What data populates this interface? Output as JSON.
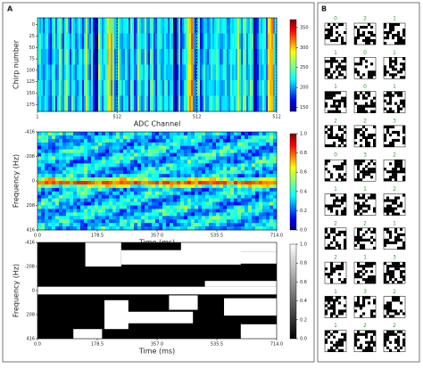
{
  "panel_labels": {
    "a": "A",
    "b": "B"
  },
  "chart_data": [
    {
      "type": "heatmap",
      "cmap": "jet",
      "xlabel": "ADC Channel",
      "ylabel": "Chirp number",
      "xlim": [
        1,
        1536
      ],
      "xticks": [
        1,
        512,
        {
          "value": 1024,
          "label": "512"
        },
        {
          "value": 1536,
          "label": "512"
        }
      ],
      "segment_lines": true,
      "ylim": [
        -15,
        190
      ],
      "y_inverted": true,
      "yticks": [
        0,
        25,
        50,
        75,
        100,
        125,
        150,
        175
      ],
      "colorbar": {
        "lim": [
          140,
          370
        ],
        "ticks": [
          150,
          200,
          250,
          300,
          350
        ]
      }
    },
    {
      "type": "heatmap",
      "cmap": "jet",
      "xlabel": "Time (ms)",
      "ylabel": "Frequency (Hz)",
      "xlim": [
        0,
        714
      ],
      "xticks": [
        {
          "value": 0,
          "label": "0.0"
        },
        178.5,
        {
          "value": 357,
          "label": "357.0"
        },
        535.5,
        {
          "value": 714,
          "label": "714.0"
        }
      ],
      "ylim": [
        -416,
        416
      ],
      "y_inverted": true,
      "yticks": [
        -416,
        -208,
        0,
        208,
        416
      ],
      "colorbar": {
        "lim": [
          0,
          1
        ],
        "ticks": [
          {
            "value": 0,
            "label": "0.0"
          },
          0.2,
          0.4,
          0.6,
          0.8,
          {
            "value": 1,
            "label": "1.0"
          }
        ]
      }
    },
    {
      "type": "binary",
      "cmap": "gray",
      "xlabel": "Time (ms)",
      "ylabel": "Frequency (Hz)",
      "xlim": [
        0,
        714
      ],
      "xticks": [
        {
          "value": 0,
          "label": "0.0"
        },
        178.5,
        {
          "value": 357,
          "label": "357.0"
        },
        535.5,
        {
          "value": 714,
          "label": "714.0"
        }
      ],
      "ylim": [
        -416,
        416
      ],
      "y_inverted": true,
      "yticks": [
        -416,
        -208,
        0,
        208,
        416
      ],
      "colorbar": {
        "lim": [
          0,
          1
        ],
        "ticks": [
          {
            "value": 0,
            "label": "0.0"
          },
          0.2,
          0.4,
          0.6,
          0.8,
          {
            "value": 1,
            "label": "1.0"
          }
        ]
      }
    }
  ],
  "panel_b": {
    "label_color": "#2ca02c",
    "labels": [
      [
        "0",
        "2",
        "1"
      ],
      [
        "1",
        "0",
        "1"
      ],
      [
        "1",
        "0",
        "1"
      ],
      [
        "2",
        "2",
        "3"
      ],
      [
        "0",
        "3",
        "2"
      ],
      [
        "1",
        "1",
        "2"
      ],
      [
        "2",
        "2",
        "1"
      ],
      [
        "2",
        "1",
        "3"
      ],
      [
        "1",
        "3",
        "2"
      ],
      [
        "1",
        "2",
        "2"
      ]
    ]
  }
}
